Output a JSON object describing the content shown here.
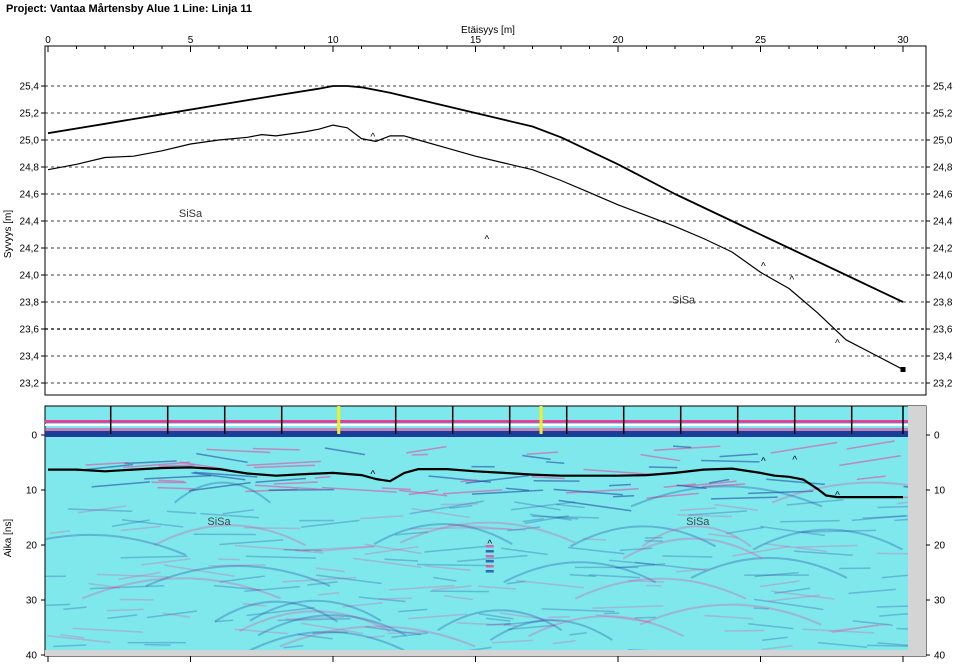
{
  "project_title": "Project: Vantaa Mårtensby Alue 1  Line: Linja 11",
  "colors": {
    "frame": "#000000",
    "radar_background": "#7ee8ec",
    "radar_positive": "#e8409a",
    "radar_negative": "#1a3e9a",
    "marker_yellow": "#f5ef22",
    "interpretation_line": "#000000"
  },
  "chart_data": [
    {
      "type": "line",
      "title": "",
      "xlabel": "Etäisyys [m]",
      "ylabel": "Syvyys [m]",
      "xlim": [
        0,
        30
      ],
      "ylim": [
        23.2,
        25.4
      ],
      "x_ticks": [
        0,
        5,
        10,
        15,
        20,
        25,
        30
      ],
      "x_tick_labels": [
        "0",
        "5",
        "10",
        "15",
        "20",
        "25",
        "30"
      ],
      "y_ticks": [
        23.2,
        23.4,
        23.6,
        23.8,
        24.0,
        24.2,
        24.4,
        24.6,
        24.8,
        25.0,
        25.2,
        25.4
      ],
      "y_tick_labels": [
        "23,2",
        "23,4",
        "23,6",
        "23,8",
        "24,0",
        "24,2",
        "24,4",
        "24,6",
        "24,8",
        "25,0",
        "25,2",
        "25,4"
      ],
      "grid": true,
      "series": [
        {
          "x": [
            0,
            2,
            4,
            6,
            8,
            9.5,
            10,
            10.5,
            11,
            12,
            14,
            15,
            16,
            17,
            18,
            19,
            20,
            22,
            24,
            26,
            28,
            30
          ],
          "values": [
            25.05,
            25.12,
            25.19,
            25.26,
            25.33,
            25.38,
            25.4,
            25.4,
            25.39,
            25.35,
            25.25,
            25.2,
            25.15,
            25.1,
            25.02,
            24.92,
            24.82,
            24.6,
            24.4,
            24.2,
            24.0,
            23.8
          ]
        },
        {
          "x": [
            0,
            1,
            2,
            3,
            4,
            5,
            6,
            7,
            7.5,
            8,
            9,
            9.5,
            10,
            10.5,
            11,
            11.5,
            12,
            12.5,
            13,
            14,
            15,
            16,
            17,
            18,
            19,
            20,
            21,
            22,
            23,
            24,
            25,
            26,
            27,
            28,
            29,
            30
          ],
          "values": [
            24.78,
            24.82,
            24.87,
            24.88,
            24.92,
            24.97,
            25.0,
            25.02,
            25.04,
            25.03,
            25.06,
            25.08,
            25.11,
            25.09,
            25.01,
            24.99,
            25.03,
            25.03,
            25.0,
            24.94,
            24.88,
            24.83,
            24.78,
            24.7,
            24.61,
            24.52,
            24.44,
            24.36,
            24.27,
            24.17,
            24.02,
            23.9,
            23.72,
            23.52,
            23.41,
            23.3
          ]
        }
      ],
      "annotations": [
        {
          "text": "SiSa",
          "x": 5.0,
          "y": 24.46
        },
        {
          "text": "SiSa",
          "x": 22.3,
          "y": 23.82
        },
        {
          "text": "^",
          "x": 11.4,
          "y": 25.03
        },
        {
          "text": "^",
          "x": 15.4,
          "y": 24.27
        },
        {
          "text": "^",
          "x": 25.1,
          "y": 24.07
        },
        {
          "text": "^",
          "x": 26.1,
          "y": 23.97
        },
        {
          "text": "^",
          "x": 27.7,
          "y": 23.5
        }
      ]
    },
    {
      "type": "heatmap",
      "title": "",
      "xlabel": "",
      "ylabel": "Aika [ns]",
      "xlim": [
        0,
        30
      ],
      "ylim": [
        40,
        -5
      ],
      "y_ticks": [
        0,
        10,
        20,
        30,
        40
      ],
      "y_tick_labels": [
        "0",
        "10",
        "20",
        "30",
        "40"
      ],
      "marker_positions": [
        2.2,
        4.2,
        6.2,
        8.2,
        10.2,
        12.2,
        14.2,
        16.2,
        18.2,
        20.2,
        22.2,
        24.2,
        26.2,
        28.2,
        30.0
      ],
      "yellow_markers": [
        10.2,
        17.3
      ],
      "interpretation_line": {
        "x": [
          0,
          1,
          2,
          3,
          4,
          5,
          6,
          7,
          8,
          9,
          10,
          11,
          11.5,
          12,
          12.5,
          13,
          14,
          15,
          16,
          17,
          18,
          19,
          20,
          21,
          22,
          23,
          24,
          25,
          25.5,
          26,
          26.5,
          27,
          27.3,
          27.7,
          28,
          29,
          30
        ],
        "values": [
          6.3,
          6.3,
          6.6,
          6.3,
          6.0,
          5.9,
          6.2,
          7.0,
          7.4,
          7.1,
          6.9,
          7.3,
          8.0,
          8.4,
          6.9,
          6.2,
          6.2,
          6.6,
          6.9,
          7.2,
          7.4,
          7.4,
          7.4,
          7.3,
          6.9,
          6.3,
          6.1,
          6.9,
          7.4,
          7.6,
          8.1,
          9.8,
          11.0,
          11.3,
          11.3,
          11.3,
          11.3
        ]
      },
      "annotations": [
        {
          "text": "SiSa",
          "x": 6.0,
          "y": 15.6
        },
        {
          "text": "SiSa",
          "x": 22.8,
          "y": 15.6
        },
        {
          "text": "^",
          "x": 11.4,
          "y": 7.0
        },
        {
          "text": "^",
          "x": 15.5,
          "y": 19.6
        },
        {
          "text": "^",
          "x": 25.1,
          "y": 4.6
        },
        {
          "text": "^",
          "x": 26.2,
          "y": 4.4
        },
        {
          "text": "^",
          "x": 27.7,
          "y": 10.8
        }
      ]
    }
  ]
}
